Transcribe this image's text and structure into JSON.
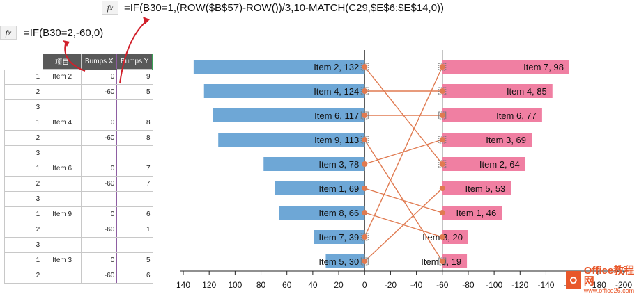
{
  "formula_bar_top": {
    "icon": "fx-icon",
    "text": "=IF(B30=1,(ROW($B$57)-ROW())/3,10-MATCH(C29,$E$6:$E$14,0))"
  },
  "formula_bar_left": {
    "icon": "fx-icon",
    "text": "=IF(B30=2,-60,0)"
  },
  "sheet": {
    "headers": [
      "",
      "项目",
      "Bumps X",
      "Bumps Y"
    ],
    "rows": [
      [
        "1",
        "Item 2",
        "0",
        "9"
      ],
      [
        "2",
        "",
        "-60",
        "5"
      ],
      [
        "3",
        "",
        "",
        ""
      ],
      [
        "1",
        "Item 4",
        "0",
        "8"
      ],
      [
        "2",
        "",
        "-60",
        "8"
      ],
      [
        "3",
        "",
        "",
        ""
      ],
      [
        "1",
        "Item 6",
        "0",
        "7"
      ],
      [
        "2",
        "",
        "-60",
        "7"
      ],
      [
        "3",
        "",
        "",
        ""
      ],
      [
        "1",
        "Item 9",
        "0",
        "6"
      ],
      [
        "2",
        "",
        "-60",
        "1"
      ],
      [
        "3",
        "",
        "",
        ""
      ],
      [
        "1",
        "Item 3",
        "0",
        "5"
      ],
      [
        "2",
        "",
        "-60",
        "6"
      ]
    ]
  },
  "chart_data": {
    "type": "bar",
    "left_series": {
      "color": "#6ea7d6",
      "labels": [
        "Item 2, 132",
        "Item 4, 124",
        "Item 6, 117",
        "Item 9, 113",
        "Item 3, 78",
        "Item 1, 69",
        "Item 8, 66",
        "Item 7, 39",
        "Item 5, 30"
      ],
      "values": [
        132,
        124,
        117,
        113,
        78,
        69,
        66,
        39,
        30
      ]
    },
    "right_series": {
      "color": "#f07fa2",
      "labels": [
        "Item 7, 98",
        "Item 4, 85",
        "Item 6, 77",
        "Item 3, 69",
        "Item 2, 64",
        "Item 5, 53",
        "Item 1, 46",
        "Item 8, 20",
        "Item 9, 19"
      ],
      "values": [
        98,
        85,
        77,
        69,
        64,
        53,
        46,
        20,
        19
      ]
    },
    "x_tick_labels": [
      "140",
      "120",
      "100",
      "80",
      "60",
      "40",
      "20",
      "0",
      "-20",
      "-40",
      "-60",
      "-80",
      "-100",
      "-120",
      "-140",
      "-160",
      "-180",
      "-200"
    ],
    "x_ticks": [
      140,
      120,
      100,
      80,
      60,
      40,
      20,
      0,
      -20,
      -40,
      -60,
      -80,
      -100,
      -120,
      -140,
      -160,
      -180,
      -200
    ],
    "xlim": [
      140,
      -200
    ],
    "left_axis_x": 0,
    "right_axis_x": -60,
    "line_color": "#e07a50",
    "connections": [
      {
        "item": "Item 2",
        "left_rank": 1,
        "right_rank": 5
      },
      {
        "item": "Item 4",
        "left_rank": 2,
        "right_rank": 2
      },
      {
        "item": "Item 6",
        "left_rank": 3,
        "right_rank": 3
      },
      {
        "item": "Item 9",
        "left_rank": 4,
        "right_rank": 9
      },
      {
        "item": "Item 3",
        "left_rank": 5,
        "right_rank": 4
      },
      {
        "item": "Item 1",
        "left_rank": 6,
        "right_rank": 7
      },
      {
        "item": "Item 8",
        "left_rank": 7,
        "right_rank": 8
      },
      {
        "item": "Item 7",
        "left_rank": 8,
        "right_rank": 1
      },
      {
        "item": "Item 5",
        "left_rank": 9,
        "right_rank": 6
      }
    ]
  },
  "watermark": {
    "logo": "O",
    "title": "Office教程网",
    "url": "www.office26.com"
  }
}
